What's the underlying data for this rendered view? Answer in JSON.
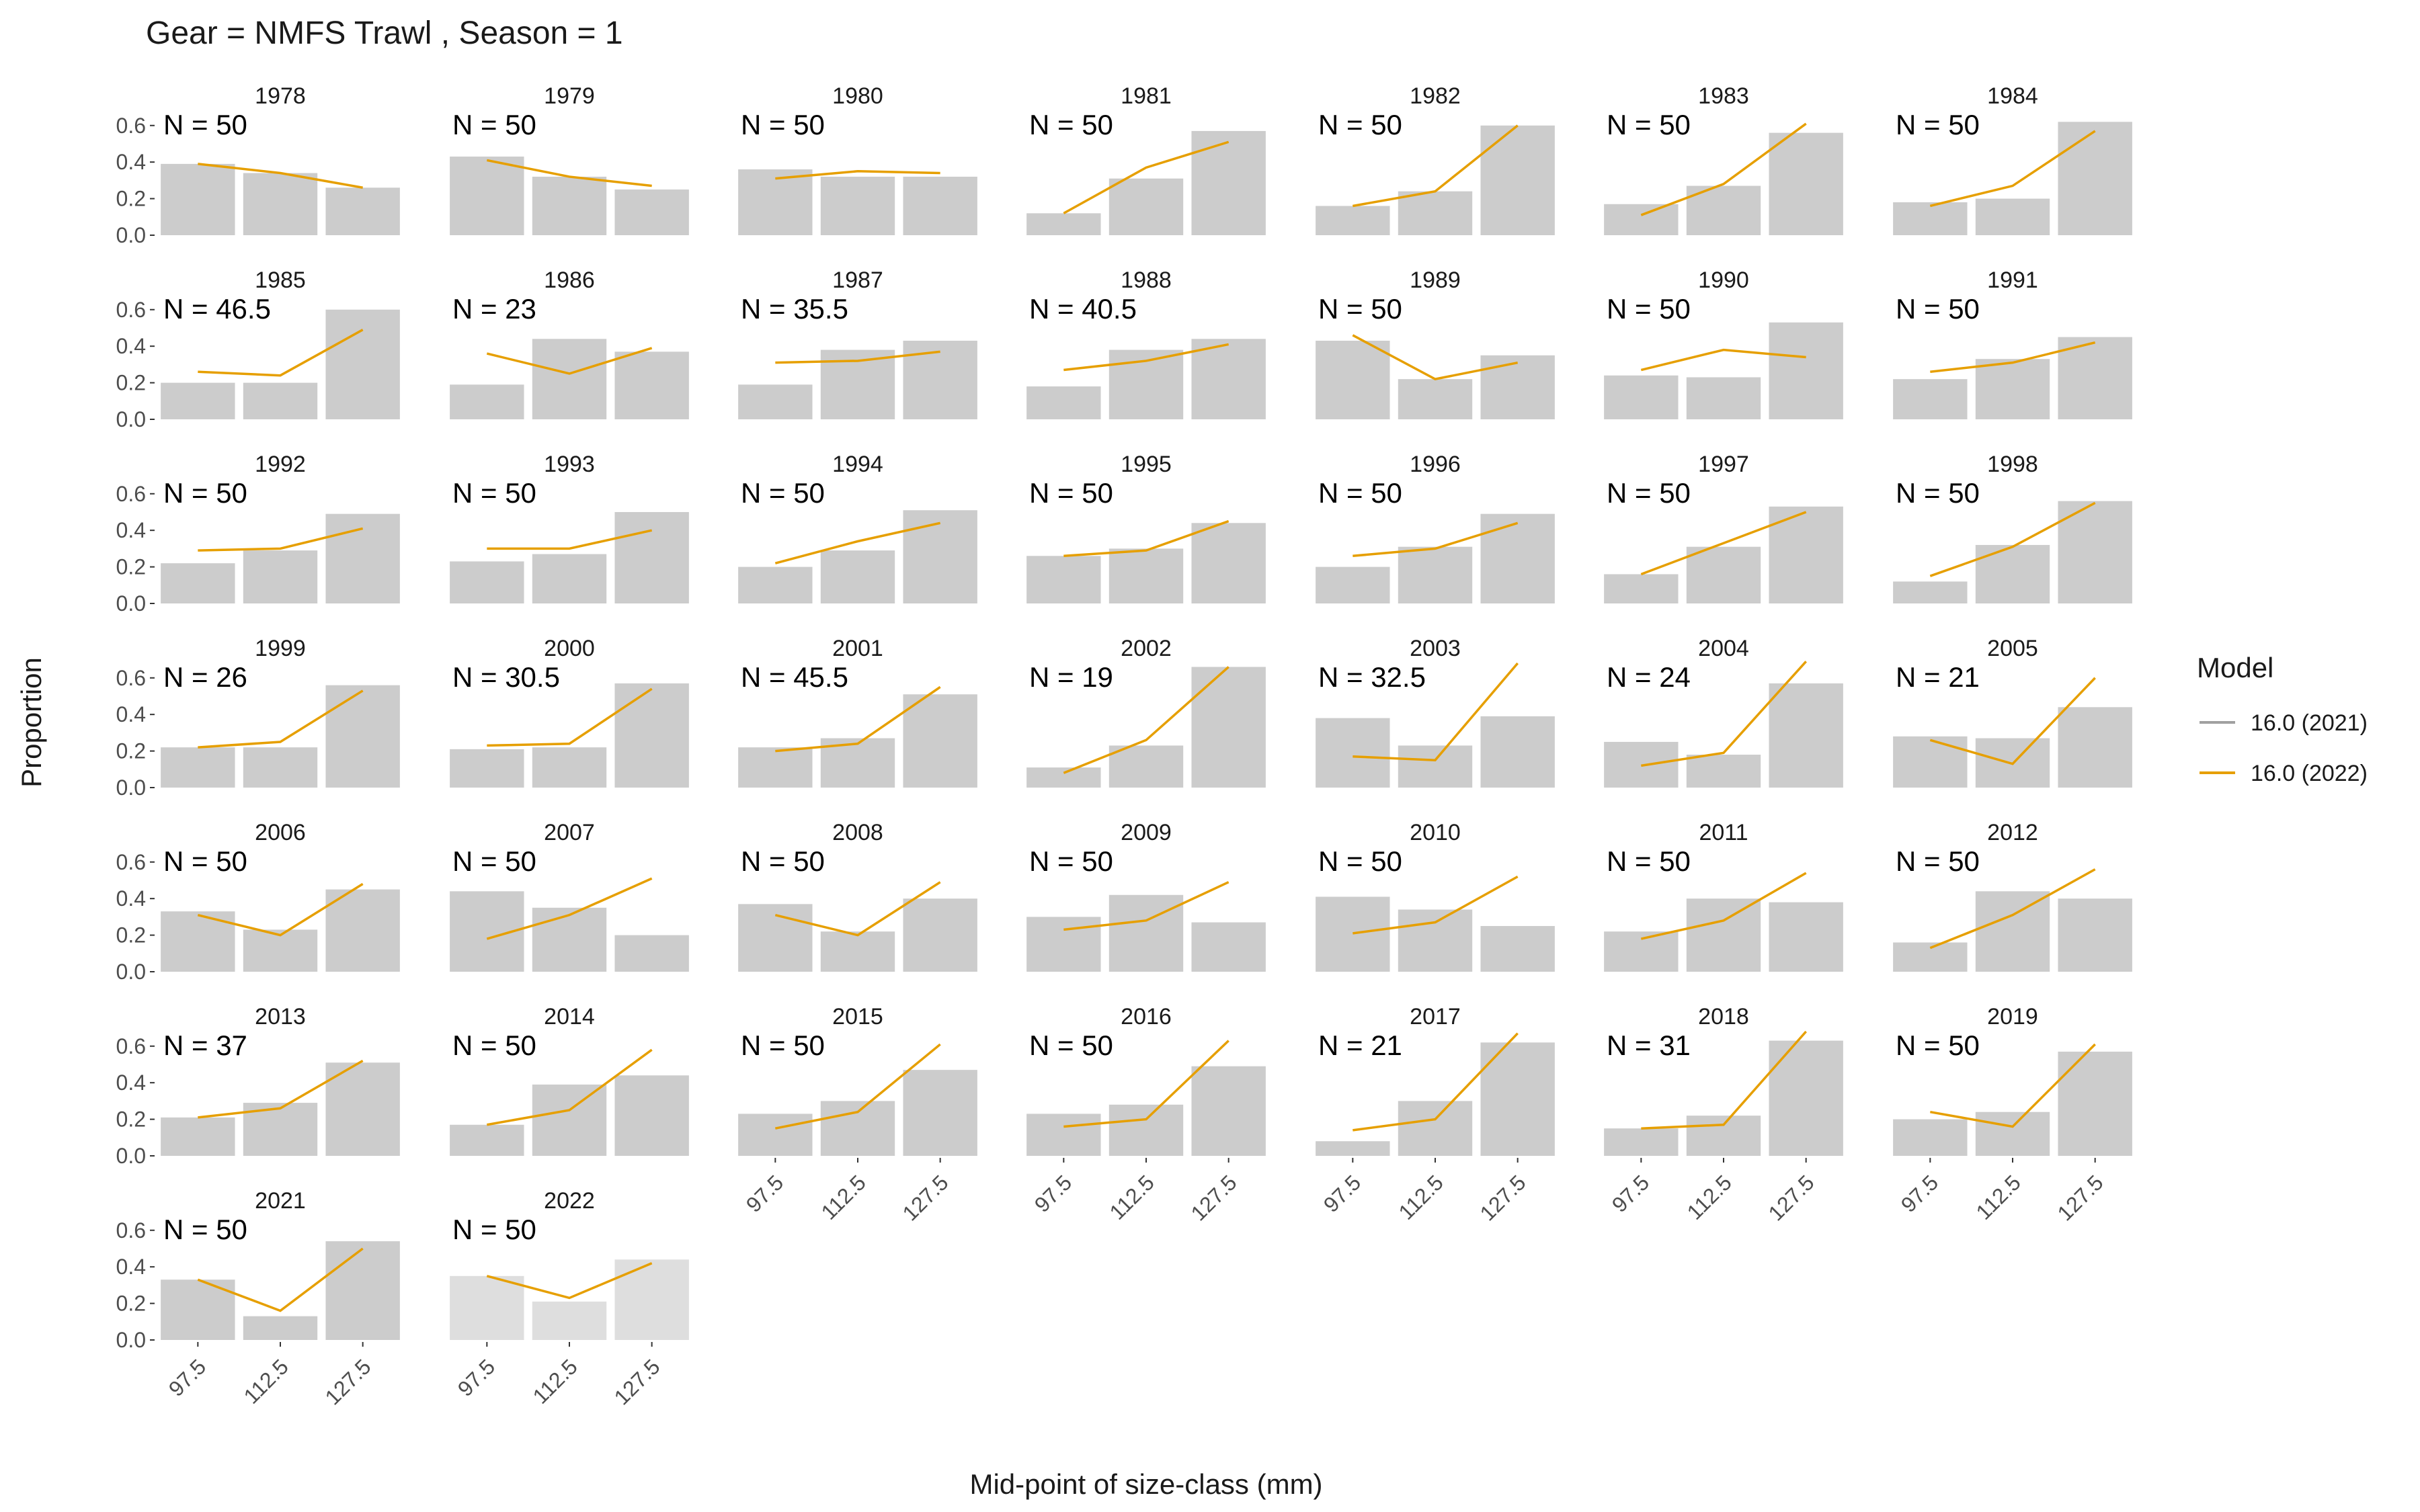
{
  "chart_data": {
    "type": "bar",
    "title": "Gear = NMFS Trawl , Season = 1",
    "xlabel": "Mid-point of size-class (mm)",
    "ylabel": "Proportion",
    "categories": [
      "97.5",
      "112.5",
      "127.5"
    ],
    "y_ticks": [
      "0.0",
      "0.2",
      "0.4",
      "0.6"
    ],
    "ylim": [
      0,
      0.68
    ],
    "legend": {
      "title": "Model",
      "position": "right",
      "entries": [
        {
          "label": "16.0 (2021)",
          "color": "#a0a0a0"
        },
        {
          "label": "16.0 (2022)",
          "color": "#e69f00"
        }
      ]
    },
    "bar_series": "observed",
    "line_series": "16.0 (2022)",
    "colors": {
      "bar": "#cccccc",
      "bar_light": "#dedede",
      "line": "#e69f00",
      "text": "#1a1a1a",
      "tick_text": "#4d4d4d"
    },
    "panels": [
      {
        "year": "1978",
        "n": "N = 50",
        "bars": [
          0.39,
          0.34,
          0.26
        ],
        "line": [
          0.39,
          0.34,
          0.26
        ]
      },
      {
        "year": "1979",
        "n": "N = 50",
        "bars": [
          0.43,
          0.32,
          0.25
        ],
        "line": [
          0.41,
          0.32,
          0.27
        ]
      },
      {
        "year": "1980",
        "n": "N = 50",
        "bars": [
          0.36,
          0.32,
          0.32
        ],
        "line": [
          0.31,
          0.35,
          0.34
        ]
      },
      {
        "year": "1981",
        "n": "N = 50",
        "bars": [
          0.12,
          0.31,
          0.57
        ],
        "line": [
          0.12,
          0.37,
          0.51
        ]
      },
      {
        "year": "1982",
        "n": "N = 50",
        "bars": [
          0.16,
          0.24,
          0.6
        ],
        "line": [
          0.16,
          0.24,
          0.6
        ]
      },
      {
        "year": "1983",
        "n": "N = 50",
        "bars": [
          0.17,
          0.27,
          0.56
        ],
        "line": [
          0.11,
          0.28,
          0.61
        ]
      },
      {
        "year": "1984",
        "n": "N = 50",
        "bars": [
          0.18,
          0.2,
          0.62
        ],
        "line": [
          0.16,
          0.27,
          0.57
        ]
      },
      {
        "year": "1985",
        "n": "N = 46.5",
        "bars": [
          0.2,
          0.2,
          0.6
        ],
        "line": [
          0.26,
          0.24,
          0.49
        ]
      },
      {
        "year": "1986",
        "n": "N = 23",
        "bars": [
          0.19,
          0.44,
          0.37
        ],
        "line": [
          0.36,
          0.25,
          0.39
        ]
      },
      {
        "year": "1987",
        "n": "N = 35.5",
        "bars": [
          0.19,
          0.38,
          0.43
        ],
        "line": [
          0.31,
          0.32,
          0.37
        ]
      },
      {
        "year": "1988",
        "n": "N = 40.5",
        "bars": [
          0.18,
          0.38,
          0.44
        ],
        "line": [
          0.27,
          0.32,
          0.41
        ]
      },
      {
        "year": "1989",
        "n": "N = 50",
        "bars": [
          0.43,
          0.22,
          0.35
        ],
        "line": [
          0.46,
          0.22,
          0.31
        ]
      },
      {
        "year": "1990",
        "n": "N = 50",
        "bars": [
          0.24,
          0.23,
          0.53
        ],
        "line": [
          0.27,
          0.38,
          0.34
        ]
      },
      {
        "year": "1991",
        "n": "N = 50",
        "bars": [
          0.22,
          0.33,
          0.45
        ],
        "line": [
          0.26,
          0.31,
          0.42
        ]
      },
      {
        "year": "1992",
        "n": "N = 50",
        "bars": [
          0.22,
          0.29,
          0.49
        ],
        "line": [
          0.29,
          0.3,
          0.41
        ]
      },
      {
        "year": "1993",
        "n": "N = 50",
        "bars": [
          0.23,
          0.27,
          0.5
        ],
        "line": [
          0.3,
          0.3,
          0.4
        ]
      },
      {
        "year": "1994",
        "n": "N = 50",
        "bars": [
          0.2,
          0.29,
          0.51
        ],
        "line": [
          0.22,
          0.34,
          0.44
        ]
      },
      {
        "year": "1995",
        "n": "N = 50",
        "bars": [
          0.26,
          0.3,
          0.44
        ],
        "line": [
          0.26,
          0.29,
          0.45
        ]
      },
      {
        "year": "1996",
        "n": "N = 50",
        "bars": [
          0.2,
          0.31,
          0.49
        ],
        "line": [
          0.26,
          0.3,
          0.44
        ]
      },
      {
        "year": "1997",
        "n": "N = 50",
        "bars": [
          0.16,
          0.31,
          0.53
        ],
        "line": [
          0.16,
          0.33,
          0.5
        ]
      },
      {
        "year": "1998",
        "n": "N = 50",
        "bars": [
          0.12,
          0.32,
          0.56
        ],
        "line": [
          0.15,
          0.31,
          0.55
        ]
      },
      {
        "year": "1999",
        "n": "N = 26",
        "bars": [
          0.22,
          0.22,
          0.56
        ],
        "line": [
          0.22,
          0.25,
          0.53
        ]
      },
      {
        "year": "2000",
        "n": "N = 30.5",
        "bars": [
          0.21,
          0.22,
          0.57
        ],
        "line": [
          0.23,
          0.24,
          0.54
        ]
      },
      {
        "year": "2001",
        "n": "N = 45.5",
        "bars": [
          0.22,
          0.27,
          0.51
        ],
        "line": [
          0.2,
          0.24,
          0.55
        ]
      },
      {
        "year": "2002",
        "n": "N = 19",
        "bars": [
          0.11,
          0.23,
          0.66
        ],
        "line": [
          0.08,
          0.26,
          0.66
        ]
      },
      {
        "year": "2003",
        "n": "N = 32.5",
        "bars": [
          0.38,
          0.23,
          0.39
        ],
        "line": [
          0.17,
          0.15,
          0.68
        ]
      },
      {
        "year": "2004",
        "n": "N = 24",
        "bars": [
          0.25,
          0.18,
          0.57
        ],
        "line": [
          0.12,
          0.19,
          0.69
        ]
      },
      {
        "year": "2005",
        "n": "N = 21",
        "bars": [
          0.28,
          0.27,
          0.44
        ],
        "line": [
          0.26,
          0.13,
          0.6
        ]
      },
      {
        "year": "2006",
        "n": "N = 50",
        "bars": [
          0.33,
          0.23,
          0.45
        ],
        "line": [
          0.31,
          0.2,
          0.48
        ]
      },
      {
        "year": "2007",
        "n": "N = 50",
        "bars": [
          0.44,
          0.35,
          0.2
        ],
        "line": [
          0.18,
          0.31,
          0.51
        ]
      },
      {
        "year": "2008",
        "n": "N = 50",
        "bars": [
          0.37,
          0.22,
          0.4
        ],
        "line": [
          0.31,
          0.2,
          0.49
        ]
      },
      {
        "year": "2009",
        "n": "N = 50",
        "bars": [
          0.3,
          0.42,
          0.27
        ],
        "line": [
          0.23,
          0.28,
          0.49
        ]
      },
      {
        "year": "2010",
        "n": "N = 50",
        "bars": [
          0.41,
          0.34,
          0.25
        ],
        "line": [
          0.21,
          0.27,
          0.52
        ]
      },
      {
        "year": "2011",
        "n": "N = 50",
        "bars": [
          0.22,
          0.4,
          0.38
        ],
        "line": [
          0.18,
          0.28,
          0.54
        ]
      },
      {
        "year": "2012",
        "n": "N = 50",
        "bars": [
          0.16,
          0.44,
          0.4
        ],
        "line": [
          0.13,
          0.31,
          0.56
        ]
      },
      {
        "year": "2013",
        "n": "N = 37",
        "bars": [
          0.21,
          0.29,
          0.51
        ],
        "line": [
          0.21,
          0.26,
          0.52
        ]
      },
      {
        "year": "2014",
        "n": "N = 50",
        "bars": [
          0.17,
          0.39,
          0.44
        ],
        "line": [
          0.17,
          0.25,
          0.58
        ]
      },
      {
        "year": "2015",
        "n": "N = 50",
        "bars": [
          0.23,
          0.3,
          0.47
        ],
        "line": [
          0.15,
          0.24,
          0.61
        ]
      },
      {
        "year": "2016",
        "n": "N = 50",
        "bars": [
          0.23,
          0.28,
          0.49
        ],
        "line": [
          0.16,
          0.2,
          0.63
        ]
      },
      {
        "year": "2017",
        "n": "N = 21",
        "bars": [
          0.08,
          0.3,
          0.62
        ],
        "line": [
          0.14,
          0.2,
          0.67
        ]
      },
      {
        "year": "2018",
        "n": "N = 31",
        "bars": [
          0.15,
          0.22,
          0.63
        ],
        "line": [
          0.15,
          0.17,
          0.68
        ]
      },
      {
        "year": "2019",
        "n": "N = 50",
        "bars": [
          0.2,
          0.24,
          0.57
        ],
        "line": [
          0.24,
          0.16,
          0.61
        ]
      },
      {
        "year": "2021",
        "n": "N = 50",
        "bars": [
          0.33,
          0.13,
          0.54
        ],
        "line": [
          0.33,
          0.16,
          0.5
        ]
      },
      {
        "year": "2022",
        "n": "N = 50",
        "bars": [
          0.35,
          0.21,
          0.44
        ],
        "line": [
          0.35,
          0.23,
          0.42
        ],
        "bar_style": "light"
      }
    ]
  }
}
